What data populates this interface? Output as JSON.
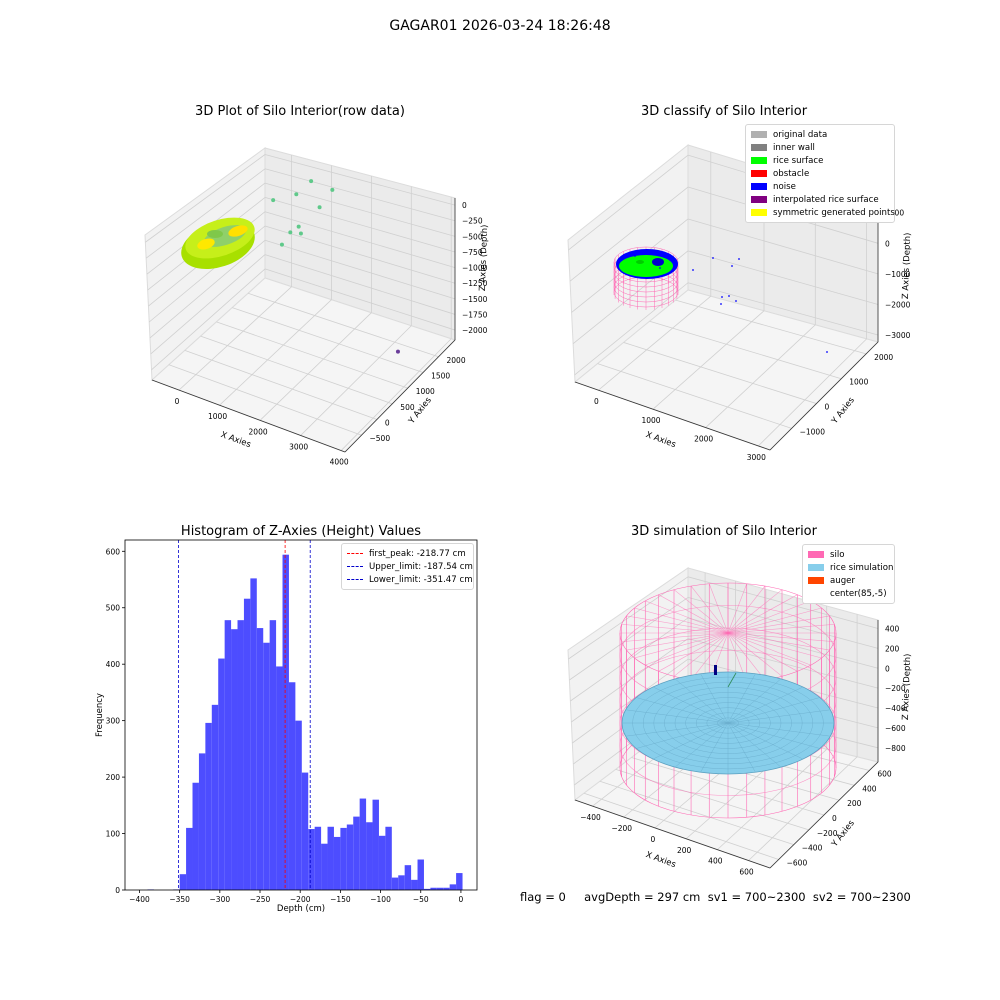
{
  "suptitle": "GAGAR01 2026-03-24 18:26:48",
  "footer": "flag = 0     avgDepth = 297 cm  sv1 = 700~2300  sv2 = 700~2300",
  "colors": {
    "hist_bar": "#4d4dff",
    "peak_line": "#ff0000",
    "limit_line": "#0000cc",
    "silo": "#ff69b4",
    "rice_sim": "#87ceeb",
    "auger": "#ff4500"
  },
  "chart_data": [
    {
      "type": "scatter",
      "kind": "3d",
      "title": "3D Plot of Silo Interior(row data)",
      "xlabel": "X Axies",
      "ylabel": "Y Axies",
      "zlabel": "Z Axies (Depth)",
      "x_ticks": [
        "0",
        "1000",
        "2000",
        "3000",
        "4000"
      ],
      "y_ticks": [
        "−500",
        "0",
        "500",
        "1000",
        "1500",
        "2000"
      ],
      "z_ticks": [
        "0",
        "−250",
        "−500",
        "−750",
        "−1000",
        "−1250",
        "−1500",
        "−1750",
        "−2000"
      ],
      "outlier_points": [
        {
          "x": 1500,
          "y": 1200,
          "z": -300
        },
        {
          "x": 1900,
          "y": 1300,
          "z": -400
        },
        {
          "x": 1250,
          "y": 1100,
          "z": -500
        },
        {
          "x": 900,
          "y": 900,
          "z": -550
        },
        {
          "x": 1650,
          "y": 1250,
          "z": -700
        },
        {
          "x": 1400,
          "y": 1000,
          "z": -900
        },
        {
          "x": 1300,
          "y": 900,
          "z": -950
        },
        {
          "x": 1500,
          "y": 950,
          "z": -950
        },
        {
          "x": 1200,
          "y": 800,
          "z": -1100
        },
        {
          "x": 4000,
          "y": 700,
          "z": -2000
        }
      ]
    },
    {
      "type": "scatter",
      "kind": "3d",
      "title": "3D classify of Silo Interior",
      "xlabel": "X Axies",
      "ylabel": "Y Axies",
      "zlabel": "Z Axies (Depth)",
      "x_ticks": [
        "0",
        "1000",
        "2000",
        "3000"
      ],
      "y_ticks": [
        "−1000",
        "0",
        "1000",
        "2000"
      ],
      "z_ticks": [
        "1000",
        "0",
        "−1000",
        "−2000",
        "−3000"
      ],
      "legend": [
        {
          "label": "original data",
          "color": "#b0b0b0"
        },
        {
          "label": "inner wall",
          "color": "#808080"
        },
        {
          "label": "rice surface",
          "color": "#00ff00"
        },
        {
          "label": "obstacle",
          "color": "#ff0000"
        },
        {
          "label": "noise",
          "color": "#0000ff"
        },
        {
          "label": "interpolated rice surface",
          "color": "#800080"
        },
        {
          "label": "symmetric generated points",
          "color": "#ffff00"
        }
      ]
    },
    {
      "type": "bar",
      "title": "Histogram of Z-Axies (Height) Values",
      "xlabel": "Depth (cm)",
      "ylabel": "Frequency",
      "xlim": [
        -410,
        0
      ],
      "ylim": [
        0,
        620
      ],
      "x_ticks": [
        -400,
        -350,
        -300,
        -250,
        -200,
        -150,
        -100,
        -50,
        0
      ],
      "y_ticks": [
        0,
        100,
        200,
        300,
        400,
        500,
        600
      ],
      "bin_width": 8,
      "bins_start": [
        -390,
        -382,
        -374,
        -366,
        -358,
        -350,
        -342,
        -334,
        -326,
        -318,
        -310,
        -302,
        -294,
        -286,
        -278,
        -270,
        -262,
        -254,
        -246,
        -238,
        -230,
        -222,
        -214,
        -206,
        -198,
        -190,
        -182,
        -174,
        -166,
        -158,
        -150,
        -142,
        -134,
        -126,
        -118,
        -110,
        -102,
        -94,
        -86,
        -78,
        -70,
        -62,
        -54,
        -46,
        -38,
        -30,
        -22,
        -14,
        -6
      ],
      "values": [
        1,
        0,
        0,
        0,
        1,
        28,
        110,
        190,
        242,
        296,
        328,
        410,
        478,
        462,
        478,
        516,
        552,
        464,
        438,
        478,
        396,
        594,
        368,
        300,
        208,
        108,
        112,
        82,
        112,
        94,
        110,
        116,
        130,
        162,
        120,
        160,
        96,
        112,
        22,
        26,
        44,
        18,
        54,
        2,
        4,
        4,
        4,
        10,
        30
      ],
      "lines": [
        {
          "label": "first_peak: -218.77 cm",
          "x": -218.77,
          "color": "#ff0000"
        },
        {
          "label": "Upper_limit: -187.54 cm",
          "x": -187.54,
          "color": "#0000cc"
        },
        {
          "label": "Lower_limit: -351.47 cm",
          "x": -351.47,
          "color": "#0000cc"
        }
      ]
    },
    {
      "type": "scatter",
      "kind": "3d",
      "title": "3D simulation of Silo Interior",
      "xlabel": "X Axies",
      "ylabel": "Y Axies",
      "zlabel": "Z Axies (Depth)",
      "x_ticks": [
        "−400",
        "−200",
        "0",
        "200",
        "400",
        "600"
      ],
      "y_ticks": [
        "−600",
        "−400",
        "−200",
        "0",
        "200",
        "400",
        "600"
      ],
      "z_ticks": [
        "400",
        "200",
        "0",
        "−200",
        "−400",
        "−600",
        "−800"
      ],
      "legend": [
        {
          "label": "silo",
          "color": "#ff69b4"
        },
        {
          "label": "rice simulation",
          "color": "#87ceeb"
        },
        {
          "label": "auger",
          "color": "#ff4500"
        },
        {
          "label": "center(85,-5)",
          "color": ""
        }
      ]
    }
  ]
}
